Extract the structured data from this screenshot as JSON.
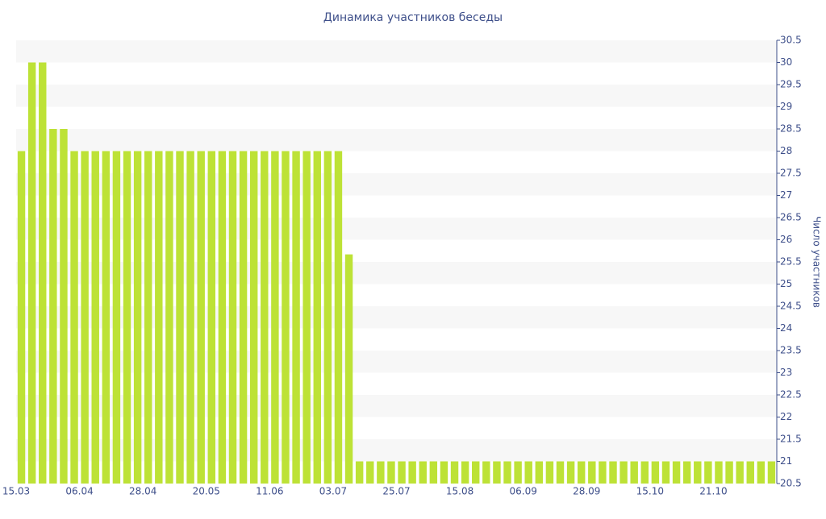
{
  "chart_data": {
    "type": "bar",
    "title": "Динамика участников беседы",
    "y_axis_label": "Число участников",
    "categories": [
      "15.03",
      null,
      null,
      null,
      null,
      null,
      "06.04",
      null,
      null,
      null,
      null,
      null,
      "28.04",
      null,
      null,
      null,
      null,
      null,
      "20.05",
      null,
      null,
      null,
      null,
      null,
      "11.06",
      null,
      null,
      null,
      null,
      null,
      "03.07",
      null,
      null,
      null,
      null,
      null,
      "25.07",
      null,
      null,
      null,
      null,
      null,
      "15.08",
      null,
      null,
      null,
      null,
      null,
      "06.09",
      null,
      null,
      null,
      null,
      null,
      "28.09",
      null,
      null,
      null,
      null,
      null,
      "15.10",
      null,
      null,
      null,
      null,
      null,
      "21.10",
      null,
      null,
      null,
      null,
      null
    ],
    "values": [
      28,
      30,
      30,
      28.5,
      28.5,
      28,
      28,
      28,
      28,
      28,
      28,
      28,
      28,
      28,
      28,
      28,
      28,
      28,
      28,
      28,
      28,
      28,
      28,
      28,
      28,
      28,
      28,
      28,
      28,
      28,
      28,
      25.67,
      21,
      21,
      21,
      21,
      21,
      21,
      21,
      21,
      21,
      21,
      21,
      21,
      21,
      21,
      21,
      21,
      21,
      21,
      21,
      21,
      21,
      21,
      21,
      21,
      21,
      21,
      21,
      21,
      21,
      21,
      21,
      21,
      21,
      21,
      21,
      21,
      21,
      21,
      21,
      21
    ],
    "color": "#bde236",
    "ylim": [
      20.5,
      30.5
    ],
    "yticks": [
      20.5,
      21,
      21.5,
      22,
      22.5,
      23,
      23.5,
      24,
      24.5,
      25,
      25.5,
      26,
      26.5,
      27,
      27.5,
      28,
      28.5,
      29,
      29.5,
      30,
      30.5
    ],
    "y_axis_side": "right",
    "grid": true
  }
}
